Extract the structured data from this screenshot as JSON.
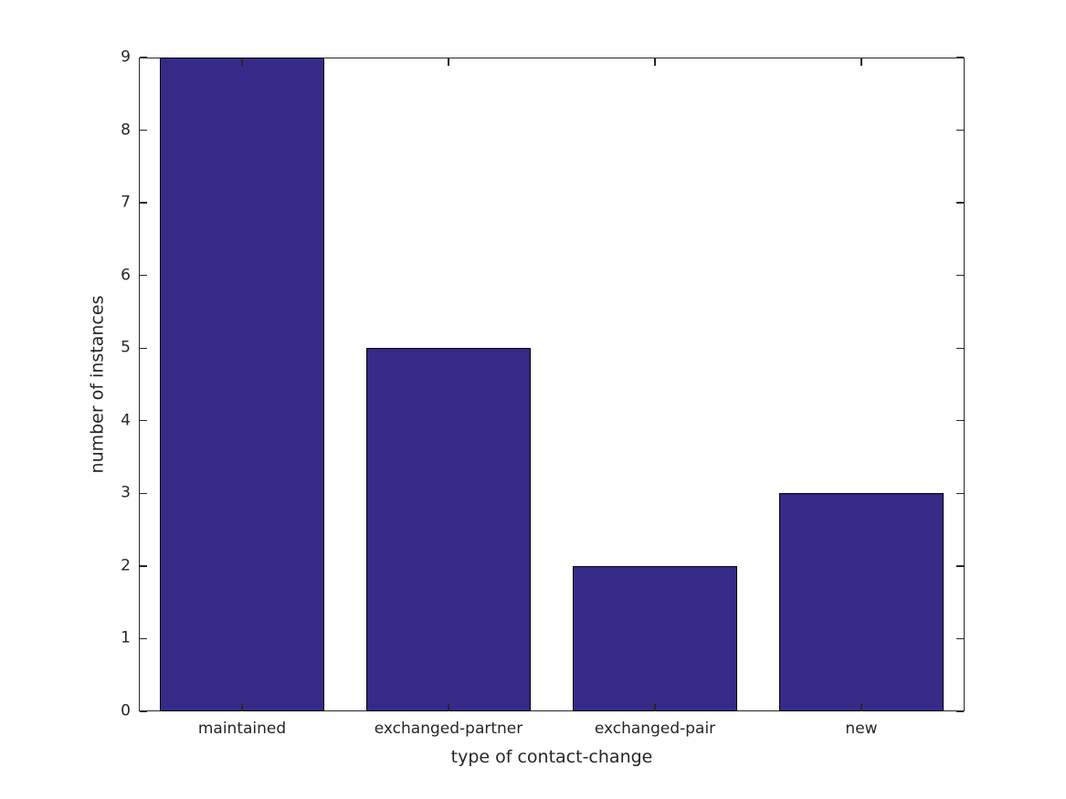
{
  "chart_data": {
    "type": "bar",
    "categories": [
      "maintained",
      "exchanged-partner",
      "exchanged-pair",
      "new"
    ],
    "values": [
      9,
      5,
      2,
      3
    ],
    "title": "",
    "xlabel": "type of contact-change",
    "ylabel": "number of instances",
    "ylim": [
      0,
      9
    ],
    "yticks": [
      0,
      1,
      2,
      3,
      4,
      5,
      6,
      7,
      8,
      9
    ],
    "ytick_labels": [
      "0",
      "1",
      "2",
      "3",
      "4",
      "5",
      "6",
      "7",
      "8",
      "9"
    ],
    "bar_width_fraction": 0.8,
    "bar_color": "#352a87",
    "bar_edge_color": "#000000",
    "axis_color": "#262626",
    "text_color": "#262626",
    "background_color": "#ffffff",
    "grid": false,
    "legend": "none",
    "tick_direction": "in",
    "box": "all-four-spines"
  }
}
